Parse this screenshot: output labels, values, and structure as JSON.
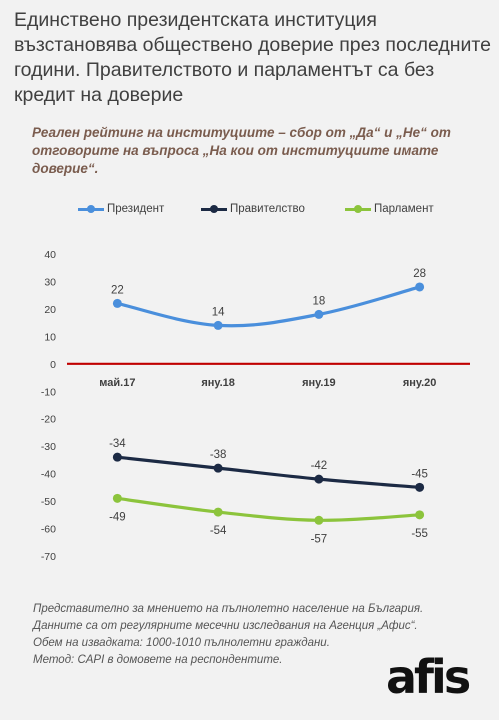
{
  "title": "Единствено президентската институция възстановява обществено доверие през последните години. Правителството и парламентът са без кредит на доверие",
  "subtitle": "Реален рейтинг на институциите – сбор от „Да“ и „Не“ от отговорите на въпроса „На кои от институциите имате доверие“.",
  "chart_data": {
    "type": "line",
    "categories": [
      "май.17",
      "яну.18",
      "яну.19",
      "яну.20"
    ],
    "series": [
      {
        "name": "Президент",
        "color": "#4a8fdc",
        "values": [
          22,
          14,
          18,
          28
        ]
      },
      {
        "name": "Правителство",
        "color": "#1c2a44",
        "values": [
          -34,
          -38,
          -42,
          -45
        ]
      },
      {
        "name": "Парламент",
        "color": "#8cc43c",
        "values": [
          -49,
          -54,
          -57,
          -55
        ]
      }
    ],
    "ylim": [
      -70,
      40
    ],
    "yticks": [
      40,
      30,
      20,
      10,
      0,
      -10,
      -20,
      -30,
      -40,
      -50,
      -60,
      -70
    ],
    "zero_line_color": "#c00000",
    "legend": "top",
    "grid": false
  },
  "footnotes": [
    "Представително за мнението на пълнолетно население на България.",
    "Данните са от регулярните месечни изследвания на Агенция „Афис“.",
    "Обем на извадката: 1000-1010 пълнолетни граждани.",
    "Метод: CAPI в домовете на респондентите."
  ],
  "logo": "afis"
}
